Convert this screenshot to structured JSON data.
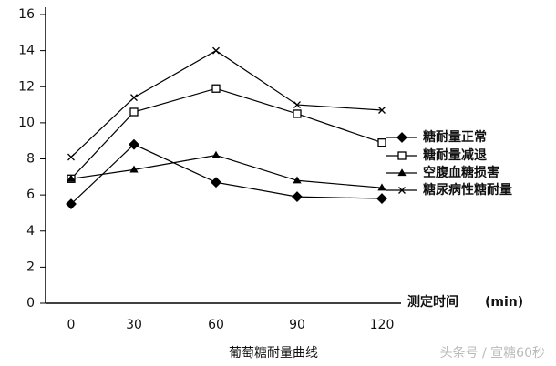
{
  "chart_data": {
    "type": "line",
    "title": "葡萄糖耐量曲线",
    "x_label": "测定时间",
    "x_unit": "(min)",
    "categories": [
      "0",
      "30",
      "60",
      "90",
      "120"
    ],
    "series": [
      {
        "name": "糖耐量正常",
        "color": "#000000",
        "marker": "diamond",
        "values": [
          5.5,
          8.8,
          6.7,
          5.9,
          5.8
        ]
      },
      {
        "name": "糖耐量减退",
        "color": "#000000",
        "marker": "square",
        "values": [
          6.9,
          10.6,
          11.9,
          10.5,
          8.9
        ]
      },
      {
        "name": "空腹血糖损害",
        "color": "#000000",
        "marker": "triangle",
        "values": [
          6.9,
          7.4,
          8.2,
          6.8,
          6.4
        ]
      },
      {
        "name": "糖尿病性糖耐量",
        "color": "#000000",
        "marker": "x",
        "values": [
          8.1,
          11.4,
          14.0,
          11.0,
          10.7
        ]
      }
    ],
    "ylim": [
      0,
      16
    ],
    "yticks": [
      0,
      2,
      4,
      6,
      8,
      10,
      12,
      14,
      16
    ]
  },
  "watermark": "头条号 / 宣糖60秒"
}
